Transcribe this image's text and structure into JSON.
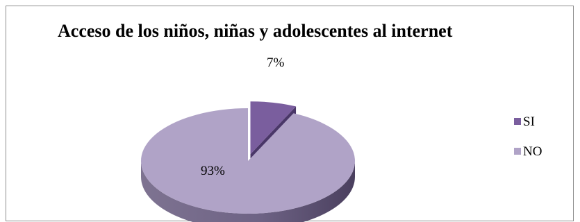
{
  "chart_data": {
    "type": "pie",
    "title": "Acceso de los niños, niñas y adolescentes al internet",
    "categories": [
      "SI",
      "NO"
    ],
    "values": [
      7,
      93
    ],
    "data_labels": [
      "7%",
      "93%"
    ],
    "legend_placement": "right",
    "colors": {
      "SI": "#7a5e9e",
      "NO": "#b0a3c7"
    },
    "style": "3d-exploded"
  }
}
